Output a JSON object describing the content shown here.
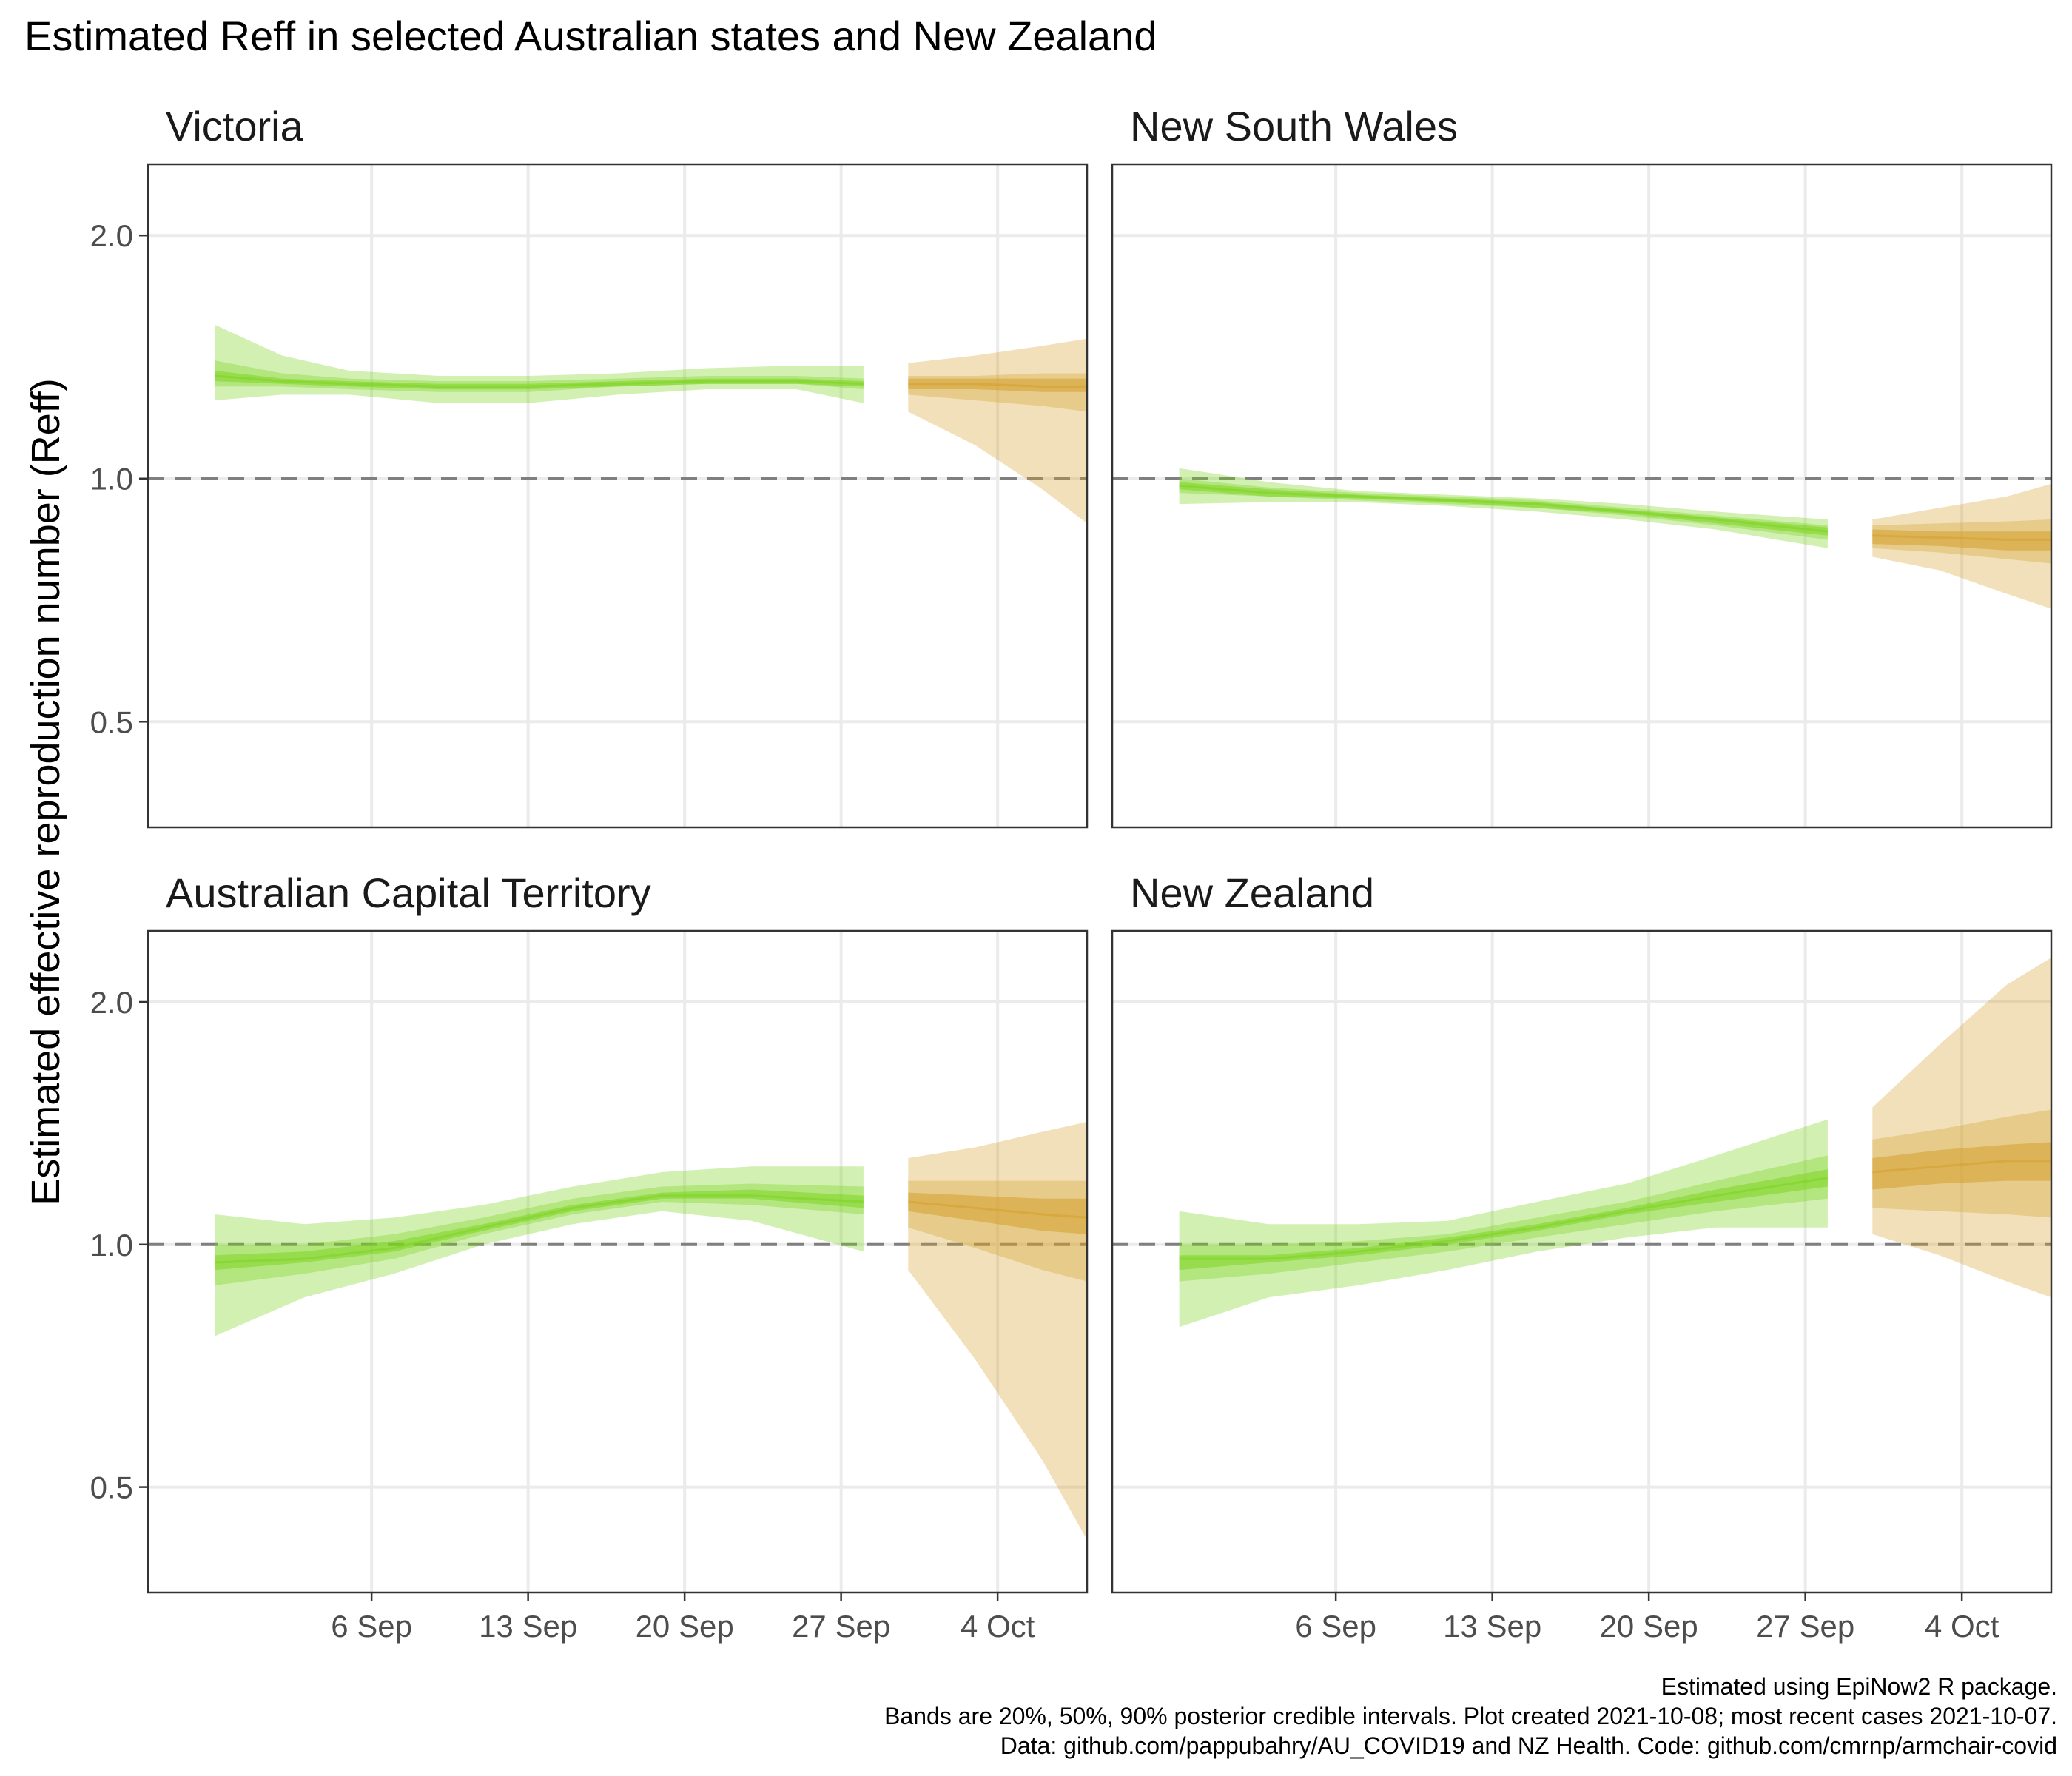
{
  "title": "Estimated Reff in selected Australian states and New Zealand",
  "ylabel": "Estimated effective reproduction number (Reff)",
  "caption": [
    "Estimated using EpiNow2 R package.",
    "Bands are 20%, 50%, 90% posterior credible intervals. Plot created 2021-10-08; most recent cases 2021-10-07.",
    "Data: github.com/pappubahry/AU_COVID19 and NZ Health. Code: github.com/cmrnp/armchair-covid"
  ],
  "colors": {
    "estimate": "#7ed321",
    "forecast": "#d4a02c",
    "reference_line": "#7f7f7f",
    "grid": "#ebebeb",
    "panel_border": "#333333"
  },
  "chart_data": {
    "type": "area",
    "scale_y": "log",
    "ylim": [
      0.37,
      2.45
    ],
    "y_ticks": [
      0.5,
      1.0,
      2.0
    ],
    "y_tick_labels": [
      "0.5",
      "1.0",
      "2.0"
    ],
    "x_range": [
      "2021-08-27",
      "2021-10-08"
    ],
    "x_ticks": [
      "2021-09-06",
      "2021-09-13",
      "2021-09-20",
      "2021-09-27",
      "2021-10-04"
    ],
    "x_tick_labels": [
      "6 Sep",
      "13 Sep",
      "20 Sep",
      "27 Sep",
      "4 Oct"
    ],
    "reference_line": 1.0,
    "grid": true,
    "panels": [
      {
        "name": "Victoria",
        "estimate": {
          "x": [
            "2021-08-30",
            "2021-09-02",
            "2021-09-05",
            "2021-09-09",
            "2021-09-13",
            "2021-09-17",
            "2021-09-21",
            "2021-09-25",
            "2021-09-28"
          ],
          "median": [
            1.34,
            1.32,
            1.31,
            1.3,
            1.3,
            1.31,
            1.32,
            1.32,
            1.31
          ],
          "ci20": [
            [
              1.32,
              1.36
            ],
            [
              1.31,
              1.33
            ],
            [
              1.3,
              1.32
            ],
            [
              1.29,
              1.31
            ],
            [
              1.29,
              1.31
            ],
            [
              1.3,
              1.32
            ],
            [
              1.31,
              1.33
            ],
            [
              1.31,
              1.33
            ],
            [
              1.3,
              1.32
            ]
          ],
          "ci50": [
            [
              1.3,
              1.4
            ],
            [
              1.3,
              1.35
            ],
            [
              1.29,
              1.33
            ],
            [
              1.28,
              1.32
            ],
            [
              1.28,
              1.32
            ],
            [
              1.3,
              1.33
            ],
            [
              1.31,
              1.34
            ],
            [
              1.31,
              1.34
            ],
            [
              1.29,
              1.33
            ]
          ],
          "ci90": [
            [
              1.25,
              1.55
            ],
            [
              1.27,
              1.42
            ],
            [
              1.27,
              1.36
            ],
            [
              1.24,
              1.34
            ],
            [
              1.24,
              1.34
            ],
            [
              1.27,
              1.35
            ],
            [
              1.29,
              1.37
            ],
            [
              1.29,
              1.38
            ],
            [
              1.24,
              1.38
            ]
          ]
        },
        "forecast": {
          "x": [
            "2021-09-30",
            "2021-10-03",
            "2021-10-06",
            "2021-10-08"
          ],
          "median": [
            1.31,
            1.31,
            1.3,
            1.3
          ],
          "ci20": [
            [
              1.29,
              1.33
            ],
            [
              1.29,
              1.33
            ],
            [
              1.28,
              1.33
            ],
            [
              1.28,
              1.33
            ]
          ],
          "ci50": [
            [
              1.27,
              1.34
            ],
            [
              1.25,
              1.34
            ],
            [
              1.23,
              1.35
            ],
            [
              1.21,
              1.35
            ]
          ],
          "ci90": [
            [
              1.21,
              1.39
            ],
            [
              1.1,
              1.42
            ],
            [
              0.97,
              1.46
            ],
            [
              0.88,
              1.49
            ]
          ]
        }
      },
      {
        "name": "New South Wales",
        "estimate": {
          "x": [
            "2021-08-30",
            "2021-09-03",
            "2021-09-07",
            "2021-09-11",
            "2021-09-15",
            "2021-09-19",
            "2021-09-23",
            "2021-09-28"
          ],
          "median": [
            0.98,
            0.96,
            0.95,
            0.94,
            0.93,
            0.91,
            0.89,
            0.86
          ],
          "ci20": [
            [
              0.97,
              0.99
            ],
            [
              0.95,
              0.97
            ],
            [
              0.945,
              0.955
            ],
            [
              0.935,
              0.945
            ],
            [
              0.92,
              0.935
            ],
            [
              0.905,
              0.915
            ],
            [
              0.88,
              0.895
            ],
            [
              0.85,
              0.87
            ]
          ],
          "ci50": [
            [
              0.96,
              1.0
            ],
            [
              0.95,
              0.975
            ],
            [
              0.94,
              0.96
            ],
            [
              0.93,
              0.95
            ],
            [
              0.92,
              0.94
            ],
            [
              0.9,
              0.92
            ],
            [
              0.875,
              0.9
            ],
            [
              0.84,
              0.875
            ]
          ],
          "ci90": [
            [
              0.93,
              1.03
            ],
            [
              0.935,
              0.99
            ],
            [
              0.935,
              0.965
            ],
            [
              0.925,
              0.955
            ],
            [
              0.91,
              0.945
            ],
            [
              0.89,
              0.93
            ],
            [
              0.865,
              0.91
            ],
            [
              0.82,
              0.89
            ]
          ]
        },
        "forecast": {
          "x": [
            "2021-09-30",
            "2021-10-03",
            "2021-10-06",
            "2021-10-08"
          ],
          "median": [
            0.85,
            0.845,
            0.84,
            0.84
          ],
          "ci20": [
            [
              0.83,
              0.865
            ],
            [
              0.825,
              0.86
            ],
            [
              0.815,
              0.86
            ],
            [
              0.815,
              0.86
            ]
          ],
          "ci50": [
            [
              0.82,
              0.875
            ],
            [
              0.81,
              0.88
            ],
            [
              0.795,
              0.885
            ],
            [
              0.785,
              0.89
            ]
          ],
          "ci90": [
            [
              0.8,
              0.89
            ],
            [
              0.77,
              0.92
            ],
            [
              0.72,
              0.95
            ],
            [
              0.69,
              0.985
            ]
          ]
        }
      },
      {
        "name": "Australian Capital Territory",
        "estimate": {
          "x": [
            "2021-08-30",
            "2021-09-03",
            "2021-09-07",
            "2021-09-11",
            "2021-09-15",
            "2021-09-19",
            "2021-09-23",
            "2021-09-28"
          ],
          "median": [
            0.95,
            0.96,
            0.99,
            1.05,
            1.11,
            1.15,
            1.15,
            1.13
          ],
          "ci20": [
            [
              0.93,
              0.97
            ],
            [
              0.95,
              0.98
            ],
            [
              0.98,
              1.01
            ],
            [
              1.04,
              1.06
            ],
            [
              1.1,
              1.12
            ],
            [
              1.14,
              1.16
            ],
            [
              1.14,
              1.17
            ],
            [
              1.11,
              1.15
            ]
          ],
          "ci50": [
            [
              0.89,
              1.0
            ],
            [
              0.92,
              1.0
            ],
            [
              0.96,
              1.03
            ],
            [
              1.03,
              1.08
            ],
            [
              1.09,
              1.14
            ],
            [
              1.13,
              1.18
            ],
            [
              1.12,
              1.19
            ],
            [
              1.09,
              1.18
            ]
          ],
          "ci90": [
            [
              0.77,
              1.09
            ],
            [
              0.86,
              1.06
            ],
            [
              0.92,
              1.08
            ],
            [
              1.0,
              1.12
            ],
            [
              1.06,
              1.18
            ],
            [
              1.1,
              1.23
            ],
            [
              1.07,
              1.25
            ],
            [
              0.98,
              1.25
            ]
          ]
        },
        "forecast": {
          "x": [
            "2021-09-30",
            "2021-10-03",
            "2021-10-06",
            "2021-10-08"
          ],
          "median": [
            1.13,
            1.11,
            1.09,
            1.08
          ],
          "ci20": [
            [
              1.1,
              1.16
            ],
            [
              1.07,
              1.15
            ],
            [
              1.04,
              1.14
            ],
            [
              1.03,
              1.14
            ]
          ],
          "ci50": [
            [
              1.05,
              1.2
            ],
            [
              0.99,
              1.2
            ],
            [
              0.93,
              1.2
            ],
            [
              0.9,
              1.2
            ]
          ],
          "ci90": [
            [
              0.93,
              1.28
            ],
            [
              0.72,
              1.32
            ],
            [
              0.54,
              1.38
            ],
            [
              0.43,
              1.42
            ]
          ]
        }
      },
      {
        "name": "New Zealand",
        "estimate": {
          "x": [
            "2021-08-30",
            "2021-09-03",
            "2021-09-07",
            "2021-09-11",
            "2021-09-15",
            "2021-09-19",
            "2021-09-23",
            "2021-09-28"
          ],
          "median": [
            0.96,
            0.96,
            0.98,
            1.01,
            1.05,
            1.1,
            1.15,
            1.21
          ],
          "ci20": [
            [
              0.93,
              0.97
            ],
            [
              0.95,
              0.97
            ],
            [
              0.97,
              0.99
            ],
            [
              1.0,
              1.02
            ],
            [
              1.04,
              1.06
            ],
            [
              1.09,
              1.11
            ],
            [
              1.13,
              1.17
            ],
            [
              1.18,
              1.24
            ]
          ],
          "ci50": [
            [
              0.9,
              1.0
            ],
            [
              0.92,
              1.0
            ],
            [
              0.95,
              1.01
            ],
            [
              0.98,
              1.03
            ],
            [
              1.02,
              1.08
            ],
            [
              1.06,
              1.13
            ],
            [
              1.1,
              1.2
            ],
            [
              1.14,
              1.29
            ]
          ],
          "ci90": [
            [
              0.79,
              1.1
            ],
            [
              0.86,
              1.06
            ],
            [
              0.89,
              1.06
            ],
            [
              0.93,
              1.07
            ],
            [
              0.98,
              1.13
            ],
            [
              1.02,
              1.19
            ],
            [
              1.05,
              1.29
            ],
            [
              1.05,
              1.43
            ]
          ]
        },
        "forecast": {
          "x": [
            "2021-09-30",
            "2021-10-03",
            "2021-10-06",
            "2021-10-08"
          ],
          "median": [
            1.23,
            1.25,
            1.27,
            1.27
          ],
          "ci20": [
            [
              1.17,
              1.28
            ],
            [
              1.19,
              1.31
            ],
            [
              1.2,
              1.33
            ],
            [
              1.2,
              1.34
            ]
          ],
          "ci50": [
            [
              1.11,
              1.35
            ],
            [
              1.1,
              1.39
            ],
            [
              1.09,
              1.44
            ],
            [
              1.08,
              1.47
            ]
          ],
          "ci90": [
            [
              1.03,
              1.48
            ],
            [
              0.97,
              1.77
            ],
            [
              0.9,
              2.1
            ],
            [
              0.86,
              2.27
            ]
          ]
        }
      }
    ]
  }
}
